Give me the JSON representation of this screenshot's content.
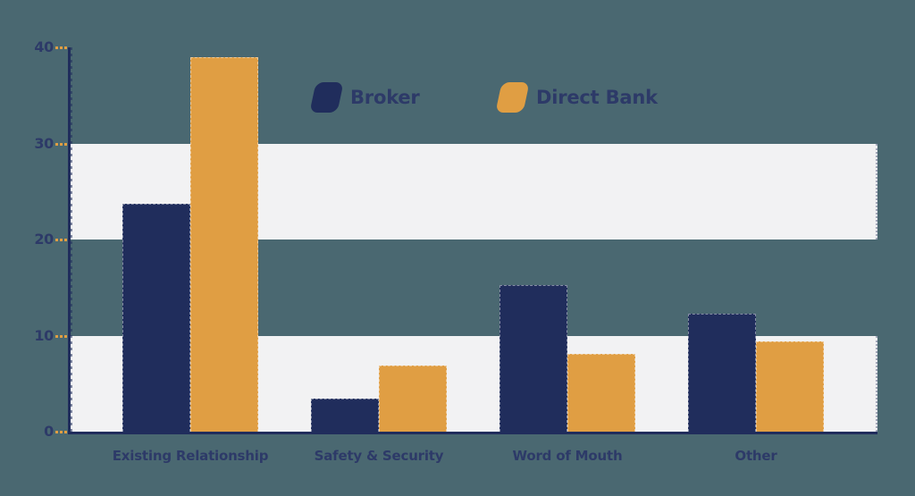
{
  "chart_data": {
    "type": "bar",
    "title": "",
    "xlabel": "",
    "ylabel": "",
    "categories": [
      "Existing Relationship",
      "Safety & Security",
      "Word of Mouth",
      "Other"
    ],
    "series": [
      {
        "name": "Broker",
        "color": "#202d5c",
        "values": [
          23.7,
          3.4,
          15.3,
          12.3
        ]
      },
      {
        "name": "Direct Bank",
        "color": "#e09e43",
        "values": [
          39.0,
          6.9,
          8.1,
          9.4
        ]
      }
    ],
    "ylim": [
      0,
      40
    ],
    "yticks": [
      40,
      30,
      20,
      10,
      0
    ],
    "grid": "horizontal striped bands on ranges 0-10 and 20-30",
    "legend_position": "top-center"
  },
  "colors": {
    "background": "#4a6871",
    "band": "#f2f2f3",
    "navy": "#202d5c",
    "orange": "#e09e43",
    "text": "#2d3a68",
    "tick": "#e09e43"
  },
  "legend": {
    "items": [
      {
        "label": "Broker"
      },
      {
        "label": "Direct Bank"
      }
    ]
  }
}
